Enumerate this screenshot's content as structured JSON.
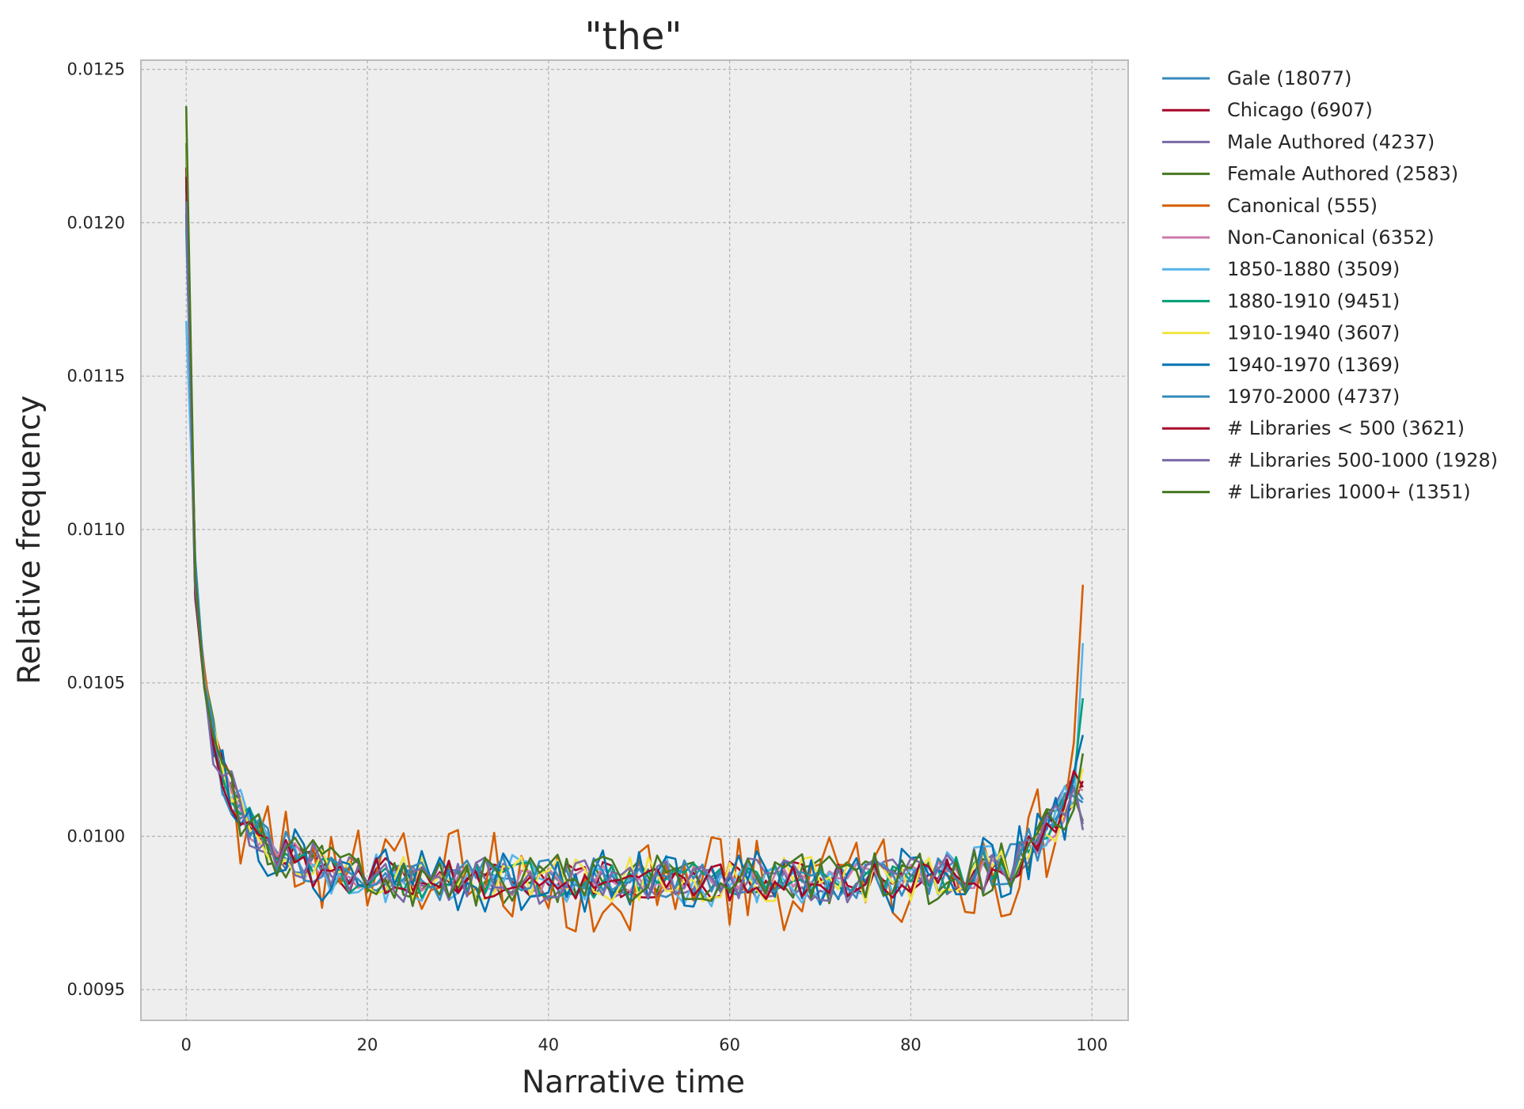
{
  "chart_data": {
    "type": "line",
    "title": "\"the\"",
    "xlabel": "Narrative time",
    "ylabel": "Relative frequency",
    "xlim": [
      -5,
      104
    ],
    "ylim": [
      0.0094,
      0.01253
    ],
    "xticks": [
      0,
      20,
      40,
      60,
      80,
      100
    ],
    "xtick_labels": [
      "0",
      "20",
      "40",
      "60",
      "80",
      "100"
    ],
    "yticks": [
      0.0095,
      0.01,
      0.0105,
      0.011,
      0.0115,
      0.012,
      0.0125
    ],
    "ytick_labels": [
      "0.0095",
      "0.0100",
      "0.0105",
      "0.0110",
      "0.0115",
      "0.0120",
      "0.0125"
    ],
    "grid": true,
    "legend_position": "outside-right-top",
    "series": [
      {
        "name": "Gale  (18077)",
        "color": "#348ABD",
        "start": 0.01212,
        "end": 0.01012,
        "volatility": 0.5,
        "seed": 1
      },
      {
        "name": "Chicago  (6907)",
        "color": "#A60628",
        "start": 0.01218,
        "end": 0.01018,
        "volatility": 0.6,
        "seed": 2
      },
      {
        "name": "Male Authored  (4237)",
        "color": "#7A68A6",
        "start": 0.01205,
        "end": 0.01002,
        "volatility": 0.6,
        "seed": 3
      },
      {
        "name": "Female Authored  (2583)",
        "color": "#467821",
        "start": 0.01226,
        "end": 0.01005,
        "volatility": 0.7,
        "seed": 4
      },
      {
        "name": "Canonical  (555)",
        "color": "#D55E00",
        "start": 0.01202,
        "end": 0.01082,
        "volatility": 1.6,
        "seed": 5
      },
      {
        "name": "Non-Canonical  (6352)",
        "color": "#CC79A7",
        "start": 0.01208,
        "end": 0.01015,
        "volatility": 0.5,
        "seed": 6
      },
      {
        "name": "1850-1880  (3509)",
        "color": "#56B4E9",
        "start": 0.01168,
        "end": 0.01063,
        "volatility": 0.8,
        "seed": 7
      },
      {
        "name": "1880-1910  (9451)",
        "color": "#009E73",
        "start": 0.01215,
        "end": 0.01045,
        "volatility": 0.6,
        "seed": 8
      },
      {
        "name": "1910-1940  (3607)",
        "color": "#F0E442",
        "start": 0.01234,
        "end": 0.01022,
        "volatility": 0.7,
        "seed": 9
      },
      {
        "name": "1940-1970  (1369)",
        "color": "#0072B2",
        "start": 0.01203,
        "end": 0.01033,
        "volatility": 1.0,
        "seed": 10
      },
      {
        "name": "1970-2000  (4737)",
        "color": "#348ABD",
        "start": 0.01198,
        "end": 0.01011,
        "volatility": 0.7,
        "seed": 11
      },
      {
        "name": "# Libraries < 500  (3621)",
        "color": "#A60628",
        "start": 0.01215,
        "end": 0.01016,
        "volatility": 0.6,
        "seed": 12
      },
      {
        "name": "# Libraries 500-1000  (1928)",
        "color": "#7A68A6",
        "start": 0.01207,
        "end": 0.01004,
        "volatility": 0.7,
        "seed": 13
      },
      {
        "name": "# Libraries 1000+  (1351)",
        "color": "#467821",
        "start": 0.01238,
        "end": 0.01027,
        "volatility": 0.8,
        "seed": 14
      }
    ]
  }
}
